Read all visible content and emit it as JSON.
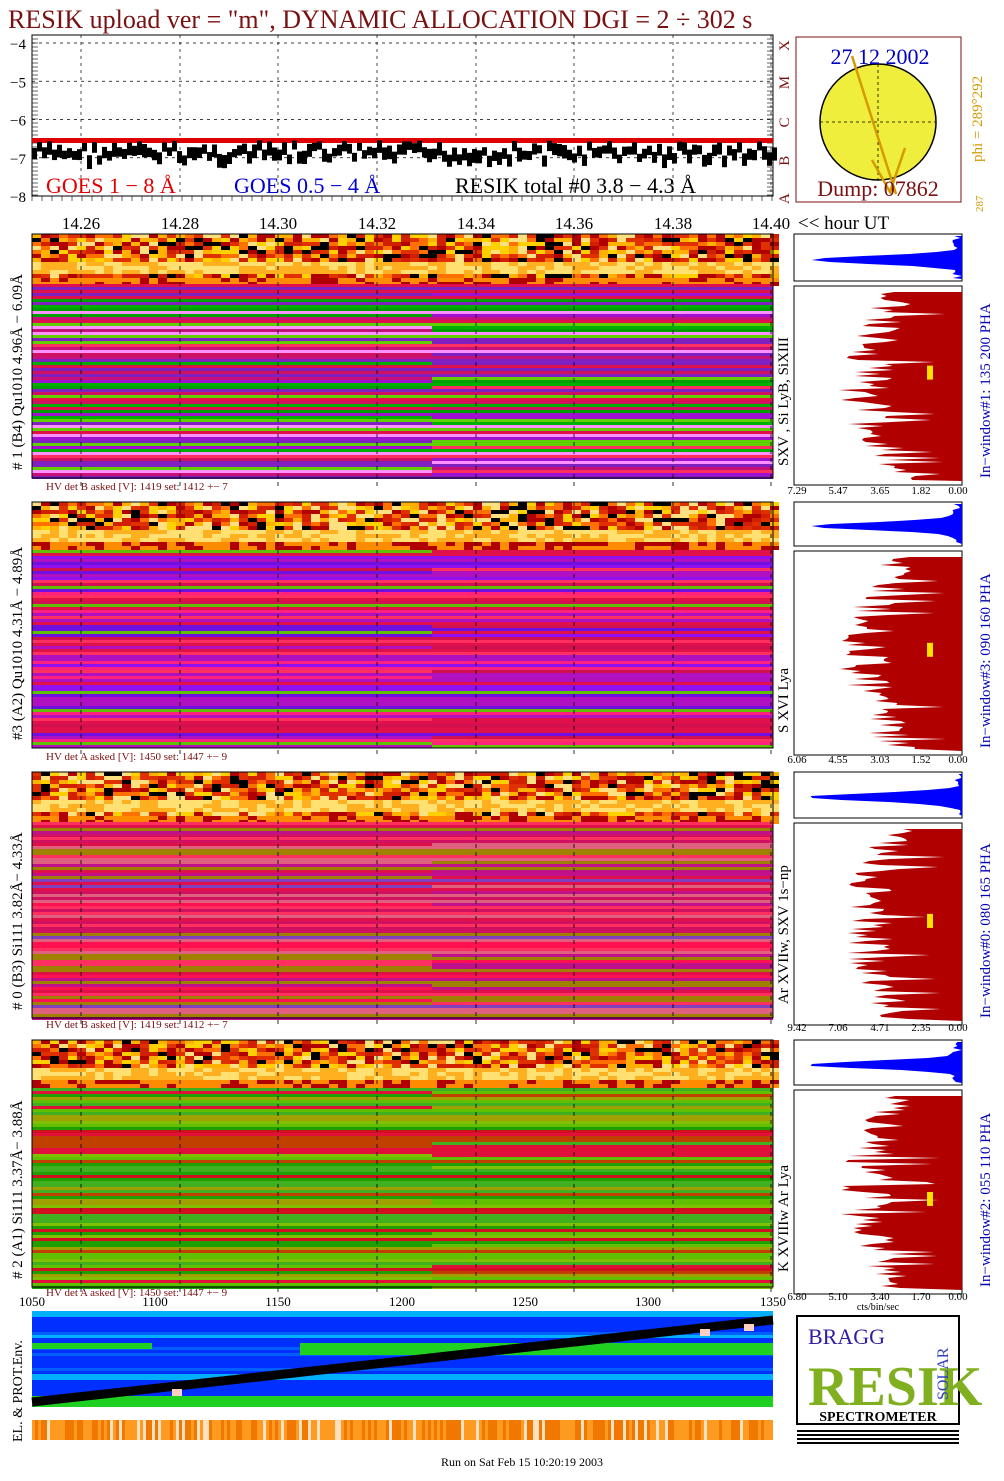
{
  "title": "RESIK upload ver = \"m\", DYNAMIC ALLOCATION  DGI =   2 ÷ 302 s",
  "goes_panel": {
    "y_ticks": [
      "−4",
      "−5",
      "−6",
      "−7",
      "−8"
    ],
    "y_values": [
      -4,
      -5,
      -6,
      -7,
      -8
    ],
    "class_letters": [
      "X",
      "M",
      "C",
      "B",
      "A"
    ],
    "legend_goes1": "GOES 1 − 8 Å",
    "legend_goes2": "GOES 0.5 − 4 Å",
    "legend_resik": "RESIK total #0  3.8 − 4.3 Å",
    "resik_level": -6.75,
    "goes_level": -6.55
  },
  "time_axis": {
    "ticks": [
      "14.26",
      "14.28",
      "14.30",
      "14.32",
      "14.34",
      "14.36",
      "14.38",
      "14.40"
    ],
    "label": "<< hour UT"
  },
  "sun": {
    "date": "27 12 2002",
    "dump": "Dump: 07862",
    "phi": "phi = 289°292",
    "phi_low": "287"
  },
  "channels": [
    {
      "left_label": "# 1 (B4) Qu1010 4.96Å − 6.09Å",
      "line_label": "SXV , Si LyB, SiXIII",
      "window_label": "In−window#1:  135 200 PHA",
      "hv": "HV det B asked [V]:  1419 set:  1412 +−   7",
      "axis": [
        "7.29",
        "5.47",
        "3.65",
        "1.82",
        "0.00"
      ],
      "marker": 0.4
    },
    {
      "left_label": "#3 (A2) Qu1010  4.31Å − 4.89Å",
      "line_label": "S XVI Lya",
      "window_label": "In−window#3:  090 160 PHA",
      "hv": "HV det A asked [V]:  1450 set:  1447 +−   9",
      "axis": [
        "6.06",
        "4.55",
        "3.03",
        "1.52",
        "0.00"
      ],
      "marker": 0.45
    },
    {
      "left_label": "# 0 (B3) Si111  3.82Å− 4.33Å",
      "line_label": "Ar XVIIw,  SXV 1s−np",
      "window_label": "In−window#0:  080 165 PHA",
      "hv": "HV det B asked [V]:  1419 set:  1412 +−   7",
      "axis": [
        "9.42",
        "7.06",
        "4.71",
        "2.35",
        "0.00"
      ],
      "marker": 0.45
    },
    {
      "left_label": "# 2 (A1) Si111  3.37Å− 3.88Å",
      "line_label": "K XVIIIw  Ar Lya",
      "window_label": "In−window#2:  055 110 PHA",
      "hv": "HV det A asked [V]:  1450 set:  1447 +−   9",
      "axis": [
        "6.80",
        "5.10",
        "3.40",
        "1.70",
        "0.00"
      ],
      "marker": 0.5
    }
  ],
  "bottom_axis": {
    "ticks": [
      "1050",
      "1100",
      "1150",
      "1200",
      "1250",
      "1300",
      "1350"
    ],
    "unit": "cts/bin/sec"
  },
  "env_label": "EL. & PROT.Env.",
  "logo": {
    "bragg": "BRAGG",
    "resik": "RESIK",
    "solar": "SOLAR",
    "spectrometer": "SPECTROMETER"
  },
  "footer": "Run on Sat Feb 15 10:20:19 2003",
  "colors": {
    "title": "#7a1010",
    "goes1": "#e00000",
    "goes2": "#0000d0",
    "spectrum": "#b00000",
    "histogram": "#0000ff"
  }
}
